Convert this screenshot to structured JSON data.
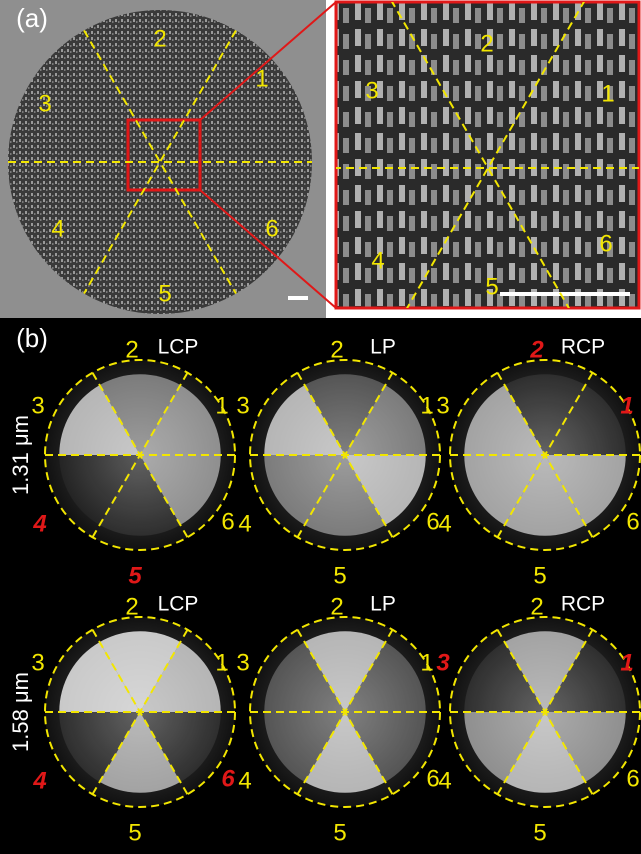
{
  "panel_a": {
    "label": "(a)",
    "overview": {
      "sectors": [
        "1",
        "2",
        "3",
        "4",
        "5",
        "6"
      ]
    },
    "zoom": {
      "sectors": [
        "1",
        "2",
        "3",
        "4",
        "5",
        "6"
      ]
    }
  },
  "panel_b": {
    "label": "(b)",
    "rows": [
      {
        "wavelength": "1.31 μm",
        "images": [
          {
            "polarization": "LCP",
            "sectors": [
              {
                "label": "1",
                "highlight": false
              },
              {
                "label": "2",
                "highlight": false
              },
              {
                "label": "3",
                "highlight": false
              },
              {
                "label": "4",
                "highlight": true
              },
              {
                "label": "5",
                "highlight": true
              },
              {
                "label": "6",
                "highlight": false
              }
            ]
          },
          {
            "polarization": "LP",
            "sectors": [
              {
                "label": "1",
                "highlight": false
              },
              {
                "label": "2",
                "highlight": false
              },
              {
                "label": "3",
                "highlight": false
              },
              {
                "label": "4",
                "highlight": false
              },
              {
                "label": "5",
                "highlight": false
              },
              {
                "label": "6",
                "highlight": false
              }
            ]
          },
          {
            "polarization": "RCP",
            "sectors": [
              {
                "label": "1",
                "highlight": true
              },
              {
                "label": "2",
                "highlight": true
              },
              {
                "label": "3",
                "highlight": false
              },
              {
                "label": "4",
                "highlight": false
              },
              {
                "label": "5",
                "highlight": false
              },
              {
                "label": "6",
                "highlight": false
              }
            ]
          }
        ]
      },
      {
        "wavelength": "1.58 μm",
        "images": [
          {
            "polarization": "LCP",
            "sectors": [
              {
                "label": "1",
                "highlight": false
              },
              {
                "label": "2",
                "highlight": false
              },
              {
                "label": "3",
                "highlight": false
              },
              {
                "label": "4",
                "highlight": true
              },
              {
                "label": "5",
                "highlight": false
              },
              {
                "label": "6",
                "highlight": true
              }
            ]
          },
          {
            "polarization": "LP",
            "sectors": [
              {
                "label": "1",
                "highlight": false
              },
              {
                "label": "2",
                "highlight": false
              },
              {
                "label": "3",
                "highlight": false
              },
              {
                "label": "4",
                "highlight": false
              },
              {
                "label": "5",
                "highlight": false
              },
              {
                "label": "6",
                "highlight": false
              }
            ]
          },
          {
            "polarization": "RCP",
            "sectors": [
              {
                "label": "1",
                "highlight": true
              },
              {
                "label": "2",
                "highlight": false
              },
              {
                "label": "3",
                "highlight": true
              },
              {
                "label": "4",
                "highlight": false
              },
              {
                "label": "5",
                "highlight": false
              },
              {
                "label": "6",
                "highlight": false
              }
            ]
          }
        ]
      }
    ]
  }
}
